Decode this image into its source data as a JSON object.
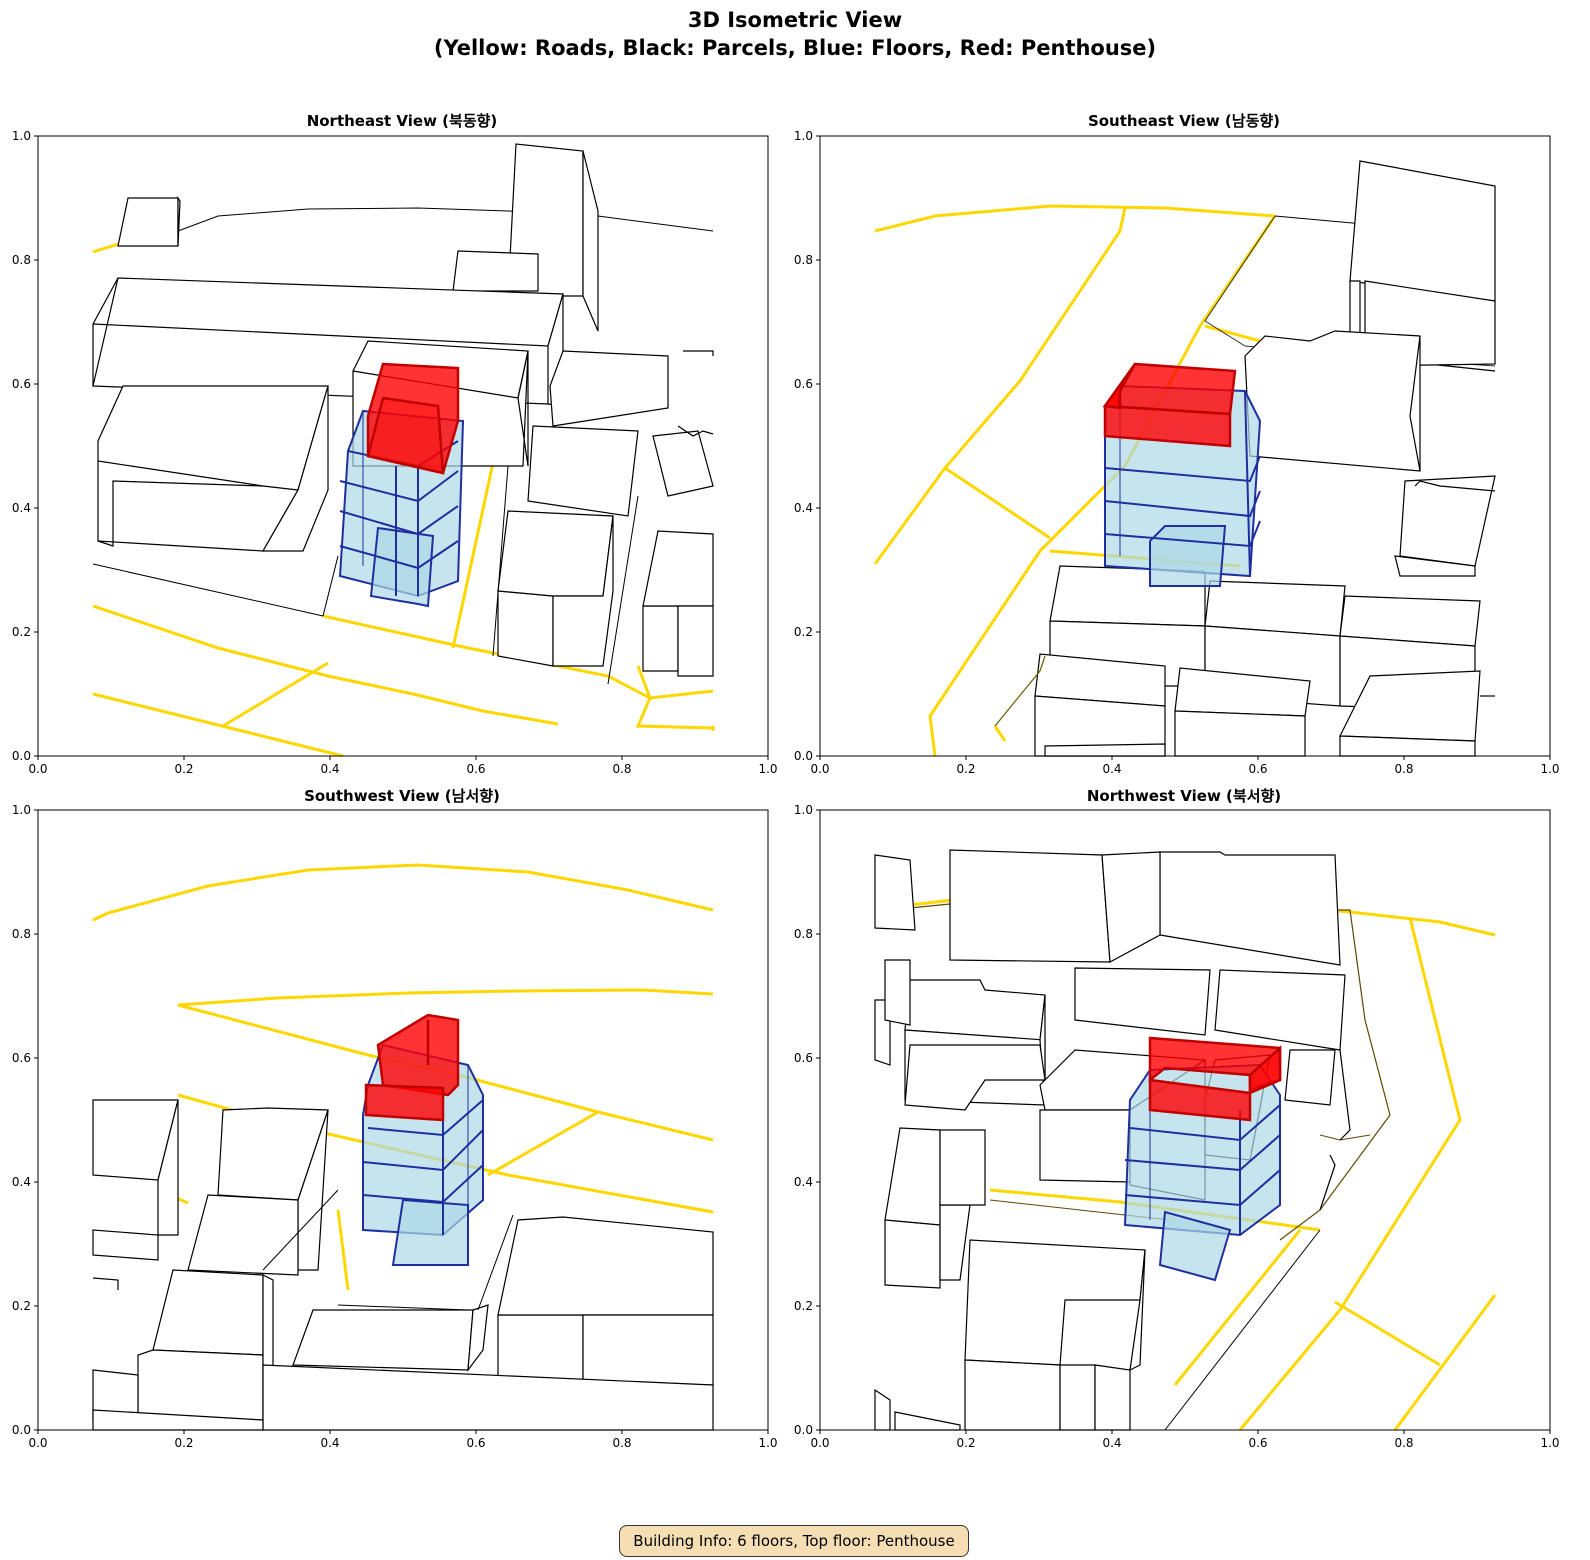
{
  "title_line1": "3D Isometric View",
  "title_line2": "(Yellow: Roads, Black: Parcels, Blue: Floors, Red: Penthouse)",
  "info_box": "Building Info: 6 floors, Top floor: Penthouse",
  "axis": {
    "xticks": [
      "0.0",
      "0.2",
      "0.4",
      "0.6",
      "0.8",
      "1.0"
    ],
    "yticks": [
      "0.0",
      "0.2",
      "0.4",
      "0.6",
      "0.8",
      "1.0"
    ]
  },
  "colors": {
    "road": "#ffd700",
    "parcel": "#000000",
    "floor": "#add8e6",
    "floor_edge": "#1f2fa0",
    "penthouse": "#ff0000"
  },
  "panels": [
    {
      "title": "Northeast View (북동향)"
    },
    {
      "title": "Southeast View (남동향)"
    },
    {
      "title": "Southwest View (남서향)"
    },
    {
      "title": "Northwest View (북서향)"
    }
  ]
}
